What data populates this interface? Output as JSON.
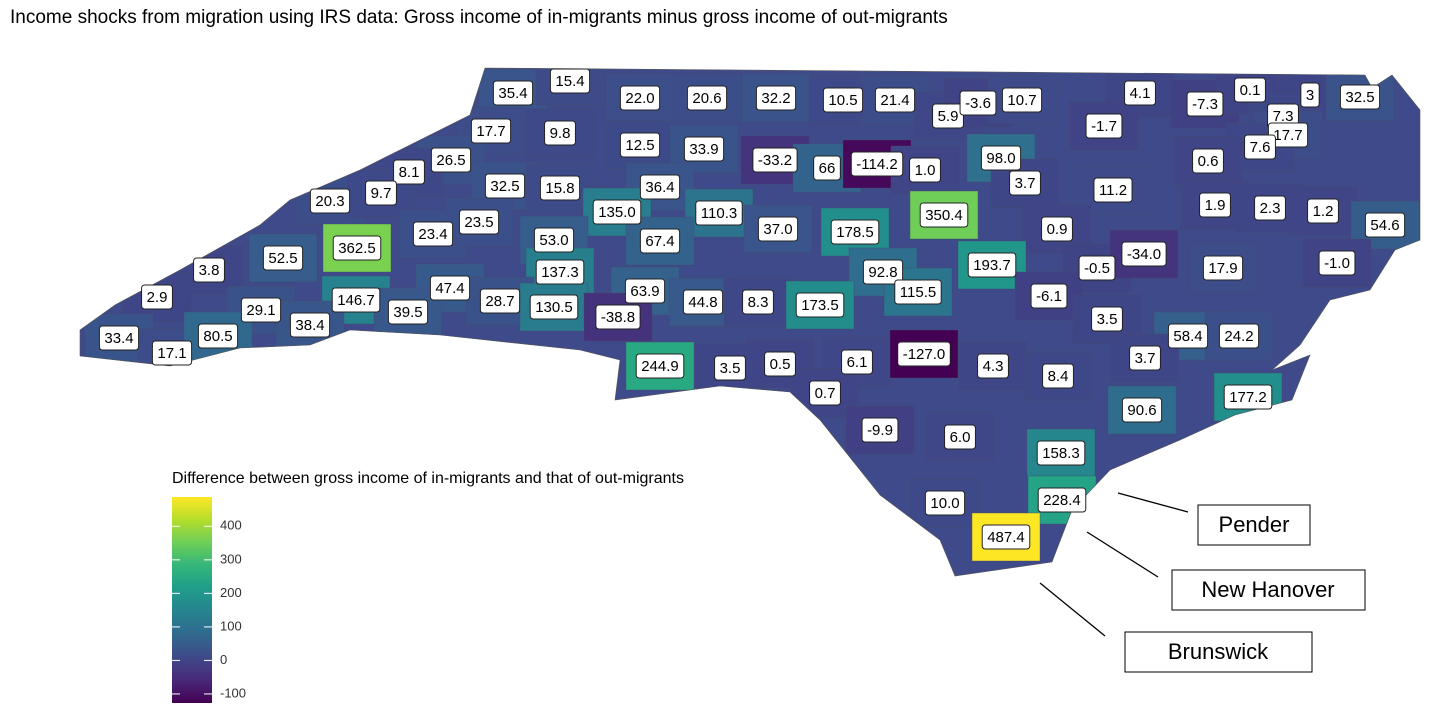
{
  "chart_data": {
    "type": "choropleth",
    "title": "Income shocks from migration using IRS data: Gross income of in-migrants minus gross income of out-migrants",
    "values": [
      35.4,
      15.4,
      22.0,
      20.6,
      32.2,
      10.5,
      21.4,
      5.9,
      -3.6,
      10.7,
      4.1,
      -7.3,
      0.1,
      3,
      32.5,
      7.3,
      17.7,
      7.6,
      17.7,
      9.8,
      12.5,
      33.9,
      -33.2,
      66,
      -114.2,
      1.0,
      98.0,
      -1.7,
      0.6,
      26.5,
      8.1,
      20.3,
      9.7,
      32.5,
      15.8,
      36.4,
      3.7,
      11.2,
      1.9,
      135.0,
      110.3,
      37.0,
      178.5,
      350.4,
      0.9,
      2.3,
      1.2,
      54.6,
      23.4,
      23.5,
      53.0,
      67.4,
      362.5,
      52.5,
      3.8,
      137.3,
      92.8,
      193.7,
      -0.5,
      -34.0,
      17.9,
      -1.0,
      2.9,
      29.1,
      146.7,
      47.4,
      63.9,
      115.5,
      -6.1,
      38.4,
      39.5,
      28.7,
      130.5,
      -38.8,
      44.8,
      8.3,
      173.5,
      3.5,
      33.4,
      17.1,
      80.5,
      58.4,
      24.2,
      244.9,
      3.5,
      0.5,
      6.1,
      -127.0,
      4.3,
      8.4,
      3.7,
      0.7,
      177.2,
      90.6,
      -9.9,
      6.0,
      158.3,
      10.0,
      228.4,
      487.4
    ],
    "value_labels": [
      "35.4",
      "15.4",
      "22.0",
      "20.6",
      "32.2",
      "10.5",
      "21.4",
      "5.9",
      "-3.6",
      "10.7",
      "4.1",
      "-7.3",
      "0.1",
      "3",
      "32.5",
      "7.3",
      "17.7",
      "7.6",
      "17.7",
      "9.8",
      "12.5",
      "33.9",
      "-33.2",
      "66",
      "-114.2",
      "1.0",
      "98.0",
      "-1.7",
      "0.6",
      "26.5",
      "8.1",
      "20.3",
      "9.7",
      "32.5",
      "15.8",
      "36.4",
      "3.7",
      "11.2",
      "1.9",
      "135.0",
      "110.3",
      "37.0",
      "178.5",
      "350.4",
      "0.9",
      "2.3",
      "1.2",
      "54.6",
      "23.4",
      "23.5",
      "53.0",
      "67.4",
      "362.5",
      "52.5",
      "3.8",
      "137.3",
      "92.8",
      "193.7",
      "-0.5",
      "-34.0",
      "17.9",
      "-1.0",
      "2.9",
      "29.1",
      "146.7",
      "47.4",
      "63.9",
      "115.5",
      "-6.1",
      "38.4",
      "39.5",
      "28.7",
      "130.5",
      "-38.8",
      "44.8",
      "8.3",
      "173.5",
      "3.5",
      "33.4",
      "17.1",
      "80.5",
      "58.4",
      "24.2",
      "244.9",
      "3.5",
      "0.5",
      "6.1",
      "-127.0",
      "4.3",
      "8.4",
      "3.7",
      "0.7",
      "177.2",
      "90.6",
      "-9.9",
      "6.0",
      "158.3",
      "10.0",
      "228.4",
      "487.4"
    ],
    "legend_title": "Difference between gross income of in-migrants and that of out-migrants",
    "colorbar_lim": [
      -127,
      487.4
    ],
    "colorbar_ticks": [
      -100,
      0,
      100,
      200,
      300,
      400
    ],
    "annotations": [
      "Pender",
      "New Hanover",
      "Brunswick"
    ]
  }
}
